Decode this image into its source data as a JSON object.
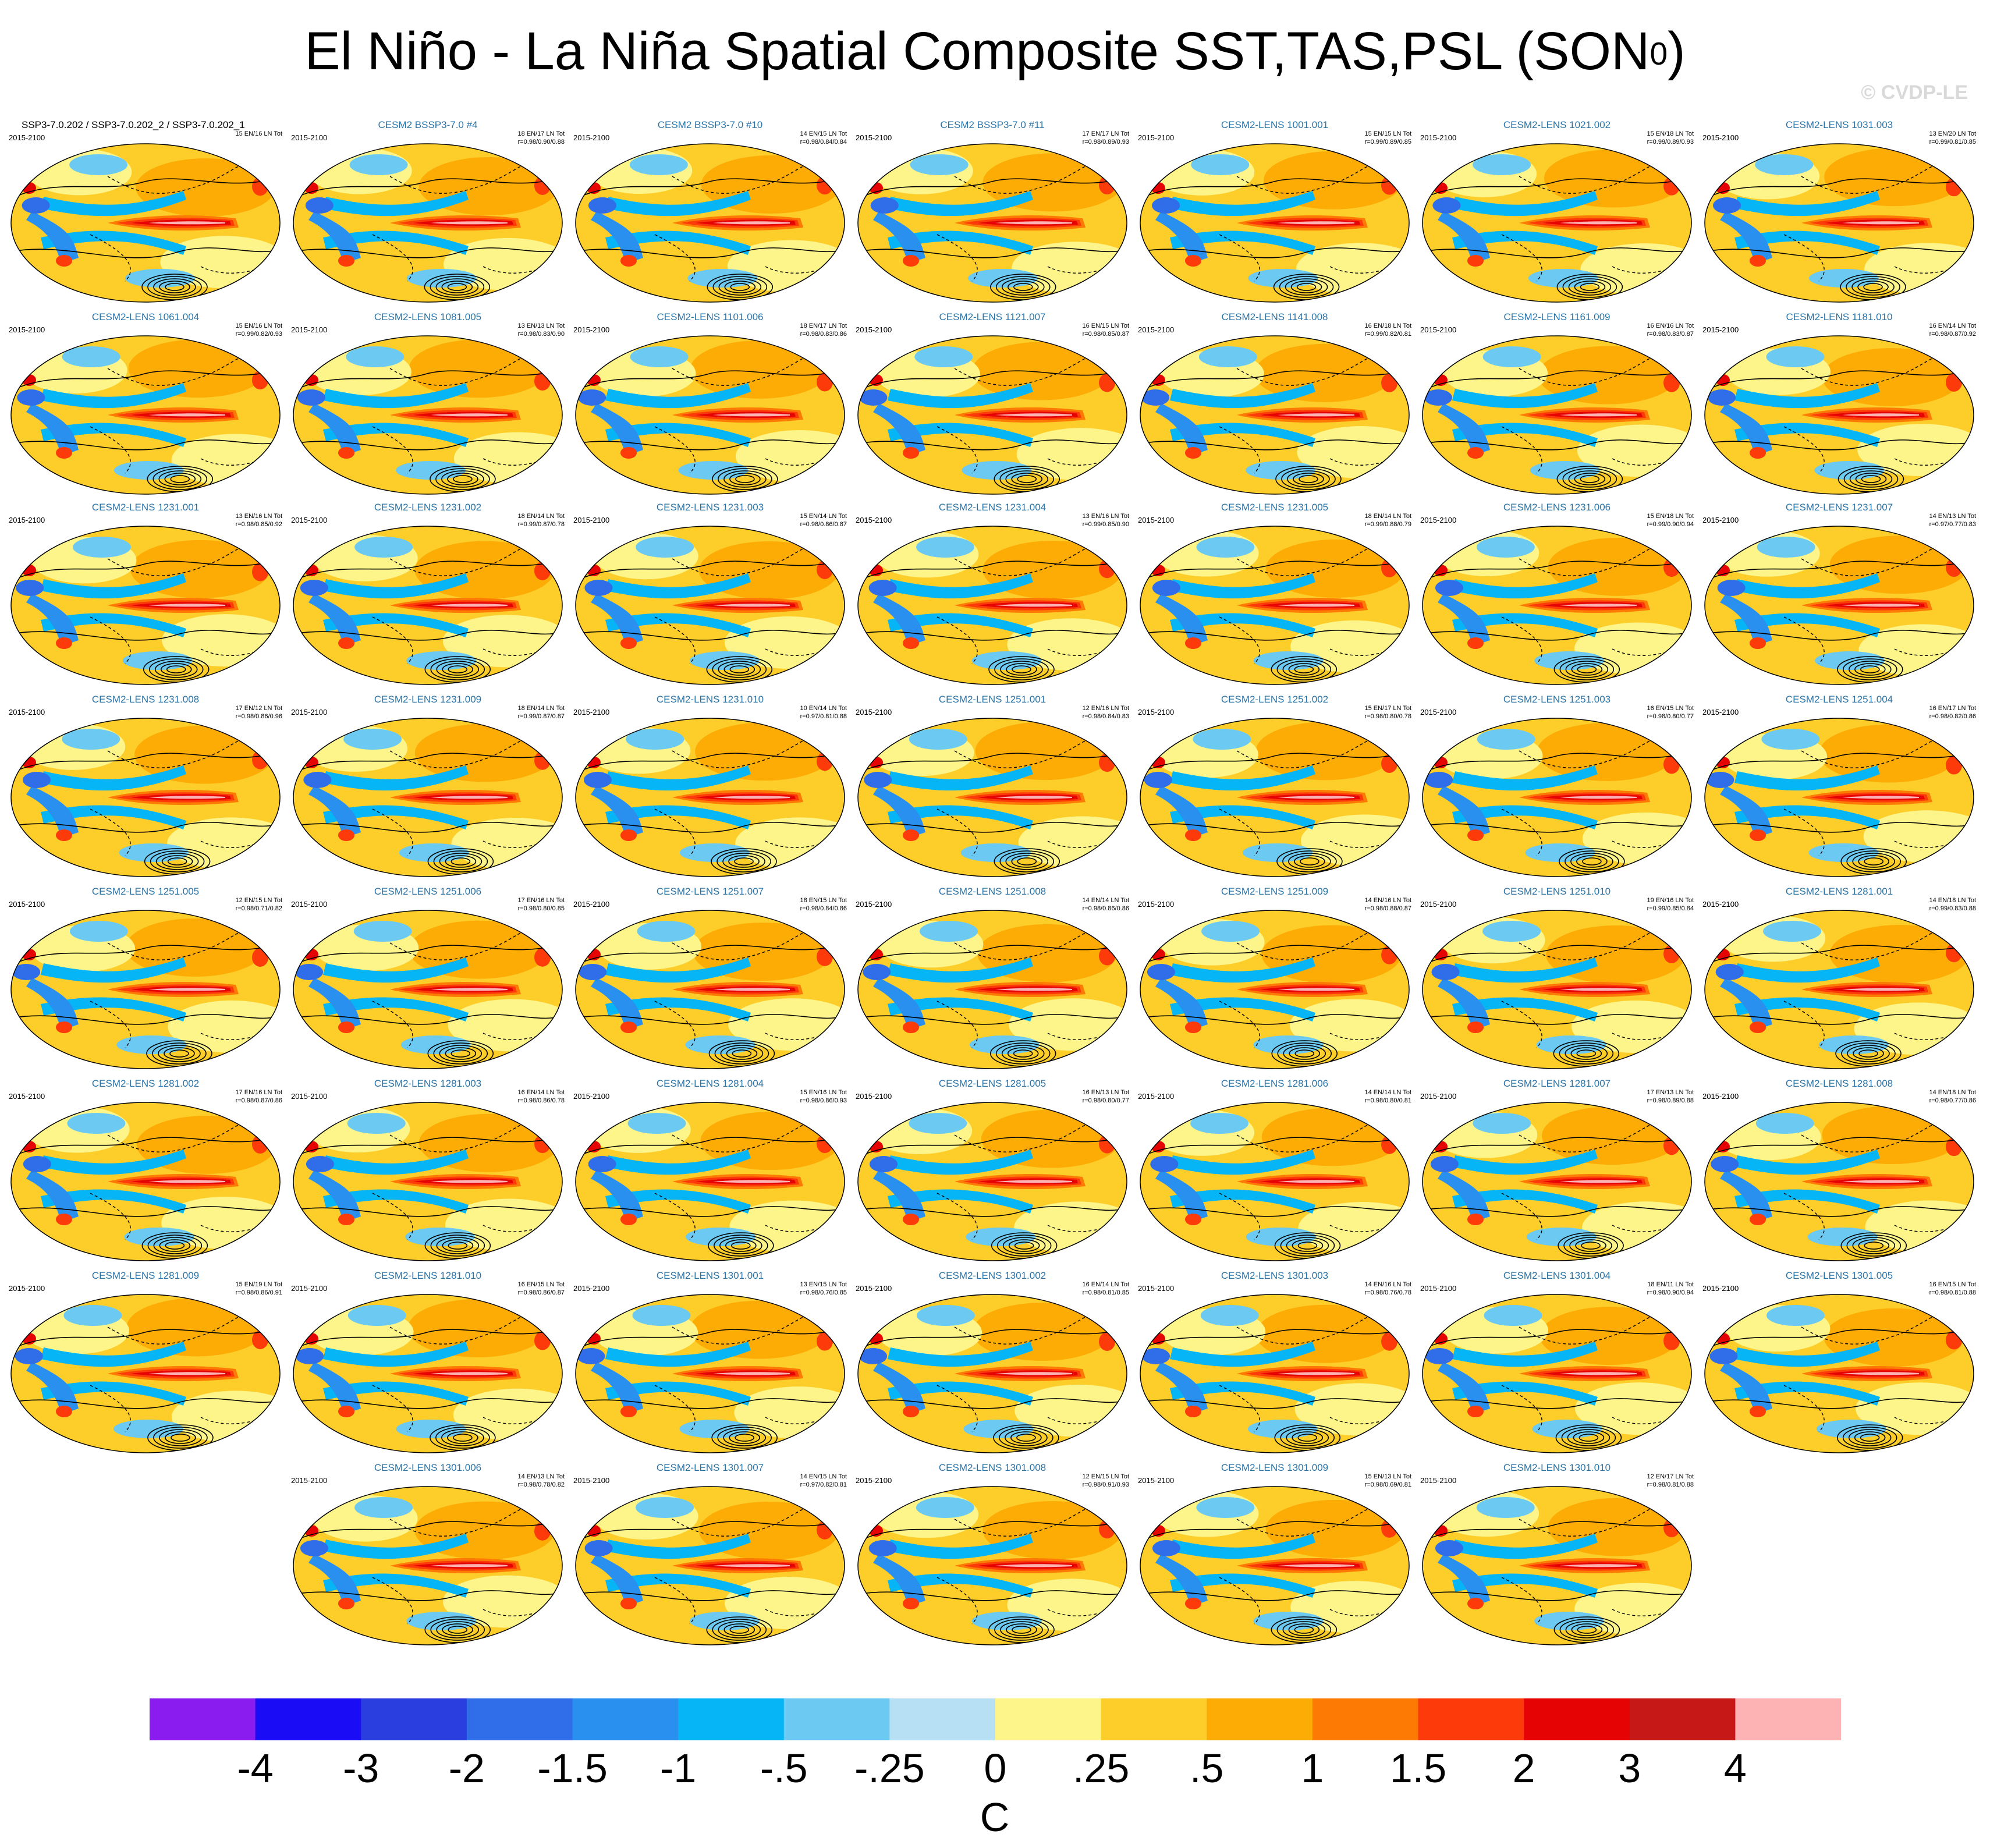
{
  "title": "El Niño - La Niña Spatial Composite SST,TAS,PSL (SON",
  "title_superscript": "0",
  "copyright": "© CVDP-LE",
  "chart_data": {
    "type": "heatmap",
    "title": "El Niño - La Niña Spatial Composite SST,TAS,PSL (SON0)",
    "projection": "global map panels with PSL contours (solid positive, dashed negative)",
    "panels": [
      {
        "name": "SSP3-7.0.202 / SSP3-7.0.202_2 / SSP3-7.0.202_1",
        "period": "2015-2100",
        "counts": "15 EN/16 LN Tot",
        "corr": ""
      },
      {
        "name": "CESM2 BSSP3-7.0 #4",
        "period": "2015-2100",
        "counts": "18 EN/17 LN Tot",
        "corr": "r=0.98/0.90/0.88"
      },
      {
        "name": "CESM2 BSSP3-7.0 #10",
        "period": "2015-2100",
        "counts": "14 EN/15 LN Tot",
        "corr": "r=0.98/0.84/0.84"
      },
      {
        "name": "CESM2 BSSP3-7.0 #11",
        "period": "2015-2100",
        "counts": "17 EN/17 LN Tot",
        "corr": "r=0.98/0.89/0.93"
      },
      {
        "name": "CESM2-LENS 1001.001",
        "period": "2015-2100",
        "counts": "15 EN/15 LN Tot",
        "corr": "r=0.99/0.89/0.85"
      },
      {
        "name": "CESM2-LENS 1021.002",
        "period": "2015-2100",
        "counts": "15 EN/18 LN Tot",
        "corr": "r=0.99/0.89/0.93"
      },
      {
        "name": "CESM2-LENS 1031.003",
        "period": "2015-2100",
        "counts": "13 EN/20 LN Tot",
        "corr": "r=0.99/0.81/0.85"
      },
      {
        "name": "CESM2-LENS 1061.004",
        "period": "2015-2100",
        "counts": "15 EN/16 LN Tot",
        "corr": "r=0.99/0.82/0.93"
      },
      {
        "name": "CESM2-LENS 1081.005",
        "period": "2015-2100",
        "counts": "13 EN/13 LN Tot",
        "corr": "r=0.98/0.83/0.90"
      },
      {
        "name": "CESM2-LENS 1101.006",
        "period": "2015-2100",
        "counts": "18 EN/17 LN Tot",
        "corr": "r=0.98/0.83/0.86"
      },
      {
        "name": "CESM2-LENS 1121.007",
        "period": "2015-2100",
        "counts": "16 EN/15 LN Tot",
        "corr": "r=0.98/0.85/0.87"
      },
      {
        "name": "CESM2-LENS 1141.008",
        "period": "2015-2100",
        "counts": "16 EN/18 LN Tot",
        "corr": "r=0.99/0.82/0.81"
      },
      {
        "name": "CESM2-LENS 1161.009",
        "period": "2015-2100",
        "counts": "16 EN/16 LN Tot",
        "corr": "r=0.98/0.83/0.87"
      },
      {
        "name": "CESM2-LENS 1181.010",
        "period": "2015-2100",
        "counts": "16 EN/14 LN Tot",
        "corr": "r=0.98/0.87/0.92"
      },
      {
        "name": "CESM2-LENS 1231.001",
        "period": "2015-2100",
        "counts": "13 EN/16 LN Tot",
        "corr": "r=0.98/0.85/0.92"
      },
      {
        "name": "CESM2-LENS 1231.002",
        "period": "2015-2100",
        "counts": "18 EN/14 LN Tot",
        "corr": "r=0.99/0.87/0.78"
      },
      {
        "name": "CESM2-LENS 1231.003",
        "period": "2015-2100",
        "counts": "15 EN/14 LN Tot",
        "corr": "r=0.98/0.86/0.87"
      },
      {
        "name": "CESM2-LENS 1231.004",
        "period": "2015-2100",
        "counts": "13 EN/16 LN Tot",
        "corr": "r=0.99/0.85/0.90"
      },
      {
        "name": "CESM2-LENS 1231.005",
        "period": "2015-2100",
        "counts": "18 EN/14 LN Tot",
        "corr": "r=0.99/0.88/0.79"
      },
      {
        "name": "CESM2-LENS 1231.006",
        "period": "2015-2100",
        "counts": "15 EN/18 LN Tot",
        "corr": "r=0.99/0.90/0.94"
      },
      {
        "name": "CESM2-LENS 1231.007",
        "period": "2015-2100",
        "counts": "14 EN/13 LN Tot",
        "corr": "r=0.97/0.77/0.83"
      },
      {
        "name": "CESM2-LENS 1231.008",
        "period": "2015-2100",
        "counts": "17 EN/12 LN Tot",
        "corr": "r=0.98/0.86/0.96"
      },
      {
        "name": "CESM2-LENS 1231.009",
        "period": "2015-2100",
        "counts": "18 EN/14 LN Tot",
        "corr": "r=0.99/0.87/0.87"
      },
      {
        "name": "CESM2-LENS 1231.010",
        "period": "2015-2100",
        "counts": "10 EN/14 LN Tot",
        "corr": "r=0.97/0.81/0.88"
      },
      {
        "name": "CESM2-LENS 1251.001",
        "period": "2015-2100",
        "counts": "12 EN/16 LN Tot",
        "corr": "r=0.98/0.84/0.83"
      },
      {
        "name": "CESM2-LENS 1251.002",
        "period": "2015-2100",
        "counts": "15 EN/17 LN Tot",
        "corr": "r=0.98/0.80/0.78"
      },
      {
        "name": "CESM2-LENS 1251.003",
        "period": "2015-2100",
        "counts": "16 EN/15 LN Tot",
        "corr": "r=0.98/0.80/0.77"
      },
      {
        "name": "CESM2-LENS 1251.004",
        "period": "2015-2100",
        "counts": "16 EN/17 LN Tot",
        "corr": "r=0.98/0.82/0.86"
      },
      {
        "name": "CESM2-LENS 1251.005",
        "period": "2015-2100",
        "counts": "12 EN/15 LN Tot",
        "corr": "r=0.98/0.71/0.82"
      },
      {
        "name": "CESM2-LENS 1251.006",
        "period": "2015-2100",
        "counts": "17 EN/16 LN Tot",
        "corr": "r=0.98/0.80/0.85"
      },
      {
        "name": "CESM2-LENS 1251.007",
        "period": "2015-2100",
        "counts": "18 EN/15 LN Tot",
        "corr": "r=0.98/0.84/0.86"
      },
      {
        "name": "CESM2-LENS 1251.008",
        "period": "2015-2100",
        "counts": "14 EN/14 LN Tot",
        "corr": "r=0.98/0.86/0.86"
      },
      {
        "name": "CESM2-LENS 1251.009",
        "period": "2015-2100",
        "counts": "14 EN/16 LN Tot",
        "corr": "r=0.98/0.88/0.87"
      },
      {
        "name": "CESM2-LENS 1251.010",
        "period": "2015-2100",
        "counts": "19 EN/16 LN Tot",
        "corr": "r=0.99/0.85/0.84"
      },
      {
        "name": "CESM2-LENS 1281.001",
        "period": "2015-2100",
        "counts": "14 EN/18 LN Tot",
        "corr": "r=0.99/0.83/0.88"
      },
      {
        "name": "CESM2-LENS 1281.002",
        "period": "2015-2100",
        "counts": "17 EN/16 LN Tot",
        "corr": "r=0.98/0.87/0.86"
      },
      {
        "name": "CESM2-LENS 1281.003",
        "period": "2015-2100",
        "counts": "16 EN/14 LN Tot",
        "corr": "r=0.98/0.86/0.78"
      },
      {
        "name": "CESM2-LENS 1281.004",
        "period": "2015-2100",
        "counts": "15 EN/16 LN Tot",
        "corr": "r=0.98/0.86/0.93"
      },
      {
        "name": "CESM2-LENS 1281.005",
        "period": "2015-2100",
        "counts": "16 EN/13 LN Tot",
        "corr": "r=0.98/0.80/0.77"
      },
      {
        "name": "CESM2-LENS 1281.006",
        "period": "2015-2100",
        "counts": "14 EN/14 LN Tot",
        "corr": "r=0.98/0.80/0.81"
      },
      {
        "name": "CESM2-LENS 1281.007",
        "period": "2015-2100",
        "counts": "17 EN/13 LN Tot",
        "corr": "r=0.98/0.89/0.88"
      },
      {
        "name": "CESM2-LENS 1281.008",
        "period": "2015-2100",
        "counts": "14 EN/18 LN Tot",
        "corr": "r=0.98/0.77/0.86"
      },
      {
        "name": "CESM2-LENS 1281.009",
        "period": "2015-2100",
        "counts": "15 EN/19 LN Tot",
        "corr": "r=0.98/0.86/0.91"
      },
      {
        "name": "CESM2-LENS 1281.010",
        "period": "2015-2100",
        "counts": "16 EN/15 LN Tot",
        "corr": "r=0.98/0.86/0.87"
      },
      {
        "name": "CESM2-LENS 1301.001",
        "period": "2015-2100",
        "counts": "13 EN/15 LN Tot",
        "corr": "r=0.98/0.76/0.85"
      },
      {
        "name": "CESM2-LENS 1301.002",
        "period": "2015-2100",
        "counts": "16 EN/14 LN Tot",
        "corr": "r=0.98/0.81/0.85"
      },
      {
        "name": "CESM2-LENS 1301.003",
        "period": "2015-2100",
        "counts": "14 EN/16 LN Tot",
        "corr": "r=0.98/0.76/0.78"
      },
      {
        "name": "CESM2-LENS 1301.004",
        "period": "2015-2100",
        "counts": "18 EN/11 LN Tot",
        "corr": "r=0.98/0.90/0.94"
      },
      {
        "name": "CESM2-LENS 1301.005",
        "period": "2015-2100",
        "counts": "16 EN/15 LN Tot",
        "corr": "r=0.98/0.81/0.88"
      },
      {
        "name": "CESM2-LENS 1301.006",
        "period": "2015-2100",
        "counts": "14 EN/13 LN Tot",
        "corr": "r=0.98/0.78/0.82"
      },
      {
        "name": "CESM2-LENS 1301.007",
        "period": "2015-2100",
        "counts": "14 EN/15 LN Tot",
        "corr": "r=0.97/0.82/0.81"
      },
      {
        "name": "CESM2-LENS 1301.008",
        "period": "2015-2100",
        "counts": "12 EN/15 LN Tot",
        "corr": "r=0.98/0.91/0.93"
      },
      {
        "name": "CESM2-LENS 1301.009",
        "period": "2015-2100",
        "counts": "15 EN/13 LN Tot",
        "corr": "r=0.98/0.69/0.81"
      },
      {
        "name": "CESM2-LENS 1301.010",
        "period": "2015-2100",
        "counts": "12 EN/17 LN Tot",
        "corr": "r=0.98/0.81/0.88"
      }
    ],
    "colorbar": {
      "labels": [
        "-4",
        "-3",
        "-2",
        "-1.5",
        "-1",
        "-.5",
        "-.25",
        "0",
        ".25",
        ".5",
        "1",
        "1.5",
        "2",
        "3",
        "4"
      ],
      "colors": [
        "#8a1cf0",
        "#1a0df5",
        "#2a3ee0",
        "#2f6ee8",
        "#2a90f0",
        "#05b5f5",
        "#6cc9f2",
        "#b8e0f5",
        "#fdf58a",
        "#fdcd2a",
        "#fdab05",
        "#fd7a05",
        "#fd3a0a",
        "#e60303",
        "#c71818",
        "#fdb3b3"
      ],
      "unit": "C"
    }
  }
}
